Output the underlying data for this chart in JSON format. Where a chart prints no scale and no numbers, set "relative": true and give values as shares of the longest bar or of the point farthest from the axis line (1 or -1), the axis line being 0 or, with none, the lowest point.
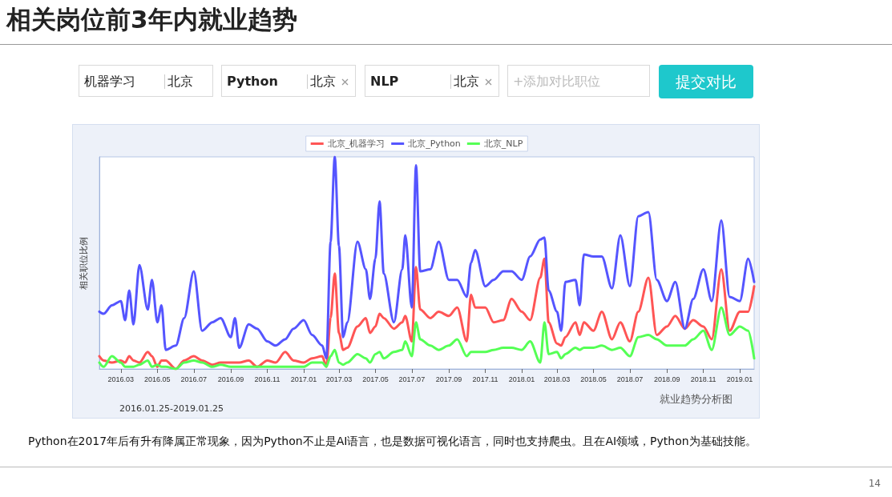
{
  "chart_data": {
    "type": "line",
    "title": "相关岗位前3年内就业趋势",
    "ylabel": "相关职位比例",
    "relative": true,
    "legend": "top",
    "grid": false,
    "marker": "none",
    "line_style": "solid",
    "x": [
      "2016-01-25",
      "2016-02-01",
      "2016-02-15",
      "2016-03-01",
      "2016-03-08",
      "2016-03-15",
      "2016-03-22",
      "2016-04-01",
      "2016-04-15",
      "2016-04-22",
      "2016-05-01",
      "2016-05-08",
      "2016-05-15",
      "2016-06-01",
      "2016-06-15",
      "2016-07-01",
      "2016-07-15",
      "2016-08-01",
      "2016-08-15",
      "2016-09-01",
      "2016-09-08",
      "2016-09-15",
      "2016-10-01",
      "2016-10-15",
      "2016-11-01",
      "2016-11-15",
      "2016-12-01",
      "2016-12-15",
      "2017-01-01",
      "2017-01-15",
      "2017-02-01",
      "2017-02-08",
      "2017-02-15",
      "2017-02-22",
      "2017-03-01",
      "2017-03-08",
      "2017-03-15",
      "2017-04-01",
      "2017-04-15",
      "2017-04-22",
      "2017-05-01",
      "2017-05-08",
      "2017-05-15",
      "2017-06-01",
      "2017-06-15",
      "2017-06-20",
      "2017-07-01",
      "2017-07-08",
      "2017-07-15",
      "2017-08-01",
      "2017-08-15",
      "2017-09-01",
      "2017-09-15",
      "2017-10-01",
      "2017-10-08",
      "2017-10-15",
      "2017-11-01",
      "2017-11-15",
      "2017-12-01",
      "2017-12-15",
      "2018-01-01",
      "2018-01-15",
      "2018-02-01",
      "2018-02-08",
      "2018-02-15",
      "2018-03-01",
      "2018-03-08",
      "2018-03-15",
      "2018-04-01",
      "2018-04-08",
      "2018-04-15",
      "2018-05-01",
      "2018-05-15",
      "2018-06-01",
      "2018-06-15",
      "2018-07-01",
      "2018-07-15",
      "2018-08-01",
      "2018-08-15",
      "2018-09-01",
      "2018-09-15",
      "2018-10-01",
      "2018-10-15",
      "2018-11-01",
      "2018-11-15",
      "2018-12-01",
      "2018-12-15",
      "2019-01-01",
      "2019-01-15",
      "2019-01-25"
    ],
    "xlim": [
      "2016-01-25",
      "2019-01-25"
    ],
    "xticks": [
      {
        "value": "2016-03-01",
        "label": "2016.03"
      },
      {
        "value": "2016-05-01",
        "label": "2016.05"
      },
      {
        "value": "2016-07-01",
        "label": "2016.07"
      },
      {
        "value": "2016-09-01",
        "label": "2016.09"
      },
      {
        "value": "2016-11-01",
        "label": "2016.11"
      },
      {
        "value": "2017-01-01",
        "label": "2017.01"
      },
      {
        "value": "2017-03-01",
        "label": "2017.03"
      },
      {
        "value": "2017-05-01",
        "label": "2017.05"
      },
      {
        "value": "2017-07-01",
        "label": "2017.07"
      },
      {
        "value": "2017-09-01",
        "label": "2017.09"
      },
      {
        "value": "2017-11-01",
        "label": "2017.11"
      },
      {
        "value": "2018-01-01",
        "label": "2018.01"
      },
      {
        "value": "2018-03-01",
        "label": "2018.03"
      },
      {
        "value": "2018-05-01",
        "label": "2018.05"
      },
      {
        "value": "2018-07-01",
        "label": "2018.07"
      },
      {
        "value": "2018-09-01",
        "label": "2018.09"
      },
      {
        "value": "2018-11-01",
        "label": "2018.11"
      },
      {
        "value": "2019-01-01",
        "label": "2019.01"
      }
    ],
    "series": [
      {
        "name": "北京_机器学习",
        "color": "#ff5555",
        "values": [
          0.06,
          0.04,
          0.03,
          0.04,
          0.03,
          0.06,
          0.04,
          0.03,
          0.08,
          0.06,
          0.01,
          0.04,
          0.04,
          0.0,
          0.04,
          0.06,
          0.04,
          0.02,
          0.03,
          0.03,
          0.03,
          0.03,
          0.04,
          0.01,
          0.04,
          0.03,
          0.08,
          0.04,
          0.03,
          0.05,
          0.06,
          0.01,
          0.24,
          0.45,
          0.17,
          0.09,
          0.1,
          0.2,
          0.24,
          0.17,
          0.2,
          0.26,
          0.24,
          0.19,
          0.22,
          0.25,
          0.13,
          0.48,
          0.28,
          0.24,
          0.27,
          0.25,
          0.29,
          0.13,
          0.35,
          0.29,
          0.29,
          0.22,
          0.23,
          0.33,
          0.27,
          0.23,
          0.43,
          0.52,
          0.22,
          0.12,
          0.11,
          0.15,
          0.22,
          0.16,
          0.22,
          0.18,
          0.27,
          0.14,
          0.22,
          0.13,
          0.27,
          0.43,
          0.16,
          0.2,
          0.25,
          0.19,
          0.23,
          0.2,
          0.14,
          0.47,
          0.18,
          0.27,
          0.27,
          0.39
        ]
      },
      {
        "name": "北京_Python",
        "color": "#5555ff",
        "values": [
          0.27,
          0.26,
          0.3,
          0.32,
          0.23,
          0.37,
          0.21,
          0.49,
          0.28,
          0.42,
          0.22,
          0.3,
          0.09,
          0.11,
          0.24,
          0.46,
          0.18,
          0.22,
          0.24,
          0.15,
          0.24,
          0.1,
          0.21,
          0.19,
          0.13,
          0.11,
          0.14,
          0.19,
          0.23,
          0.16,
          0.11,
          0.05,
          0.6,
          1.0,
          0.58,
          0.15,
          0.22,
          0.6,
          0.47,
          0.33,
          0.52,
          0.79,
          0.45,
          0.22,
          0.47,
          0.63,
          0.29,
          0.96,
          0.46,
          0.47,
          0.6,
          0.42,
          0.42,
          0.34,
          0.5,
          0.56,
          0.39,
          0.42,
          0.46,
          0.46,
          0.42,
          0.53,
          0.61,
          0.62,
          0.37,
          0.27,
          0.18,
          0.41,
          0.42,
          0.3,
          0.54,
          0.53,
          0.53,
          0.38,
          0.63,
          0.39,
          0.72,
          0.74,
          0.42,
          0.32,
          0.41,
          0.19,
          0.33,
          0.47,
          0.32,
          0.7,
          0.34,
          0.32,
          0.52,
          0.41
        ]
      },
      {
        "name": "北京_NLP",
        "color": "#55ff55",
        "values": [
          0.03,
          0.01,
          0.06,
          0.03,
          0.01,
          0.01,
          0.01,
          0.02,
          0.04,
          0.01,
          0.02,
          0.01,
          0.01,
          0.0,
          0.03,
          0.04,
          0.03,
          0.01,
          0.02,
          0.01,
          0.01,
          0.01,
          0.01,
          0.01,
          0.01,
          0.01,
          0.01,
          0.01,
          0.01,
          0.03,
          0.03,
          0.01,
          0.06,
          0.09,
          0.03,
          0.02,
          0.03,
          0.07,
          0.05,
          0.03,
          0.07,
          0.08,
          0.05,
          0.08,
          0.09,
          0.13,
          0.06,
          0.22,
          0.14,
          0.11,
          0.09,
          0.11,
          0.14,
          0.06,
          0.08,
          0.08,
          0.08,
          0.09,
          0.1,
          0.1,
          0.09,
          0.13,
          0.03,
          0.22,
          0.07,
          0.08,
          0.05,
          0.07,
          0.1,
          0.09,
          0.1,
          0.1,
          0.11,
          0.09,
          0.1,
          0.06,
          0.15,
          0.16,
          0.14,
          0.11,
          0.11,
          0.11,
          0.14,
          0.18,
          0.09,
          0.29,
          0.16,
          0.2,
          0.18,
          0.05
        ]
      }
    ],
    "annotations": [
      "机器学习",
      "北京",
      "Python",
      "北京",
      "NLP",
      "北京",
      "+添加对比职位",
      "提交对比",
      "2016.01.25-2019.01.25",
      "就业趋势分析图",
      "Python在2017年后有升有降属正常现象，因为Python不止是AI语言，也是数据可视化语言，同时也支持爬虫。且在AI领域，Python为基础技能。",
      "14"
    ]
  }
}
